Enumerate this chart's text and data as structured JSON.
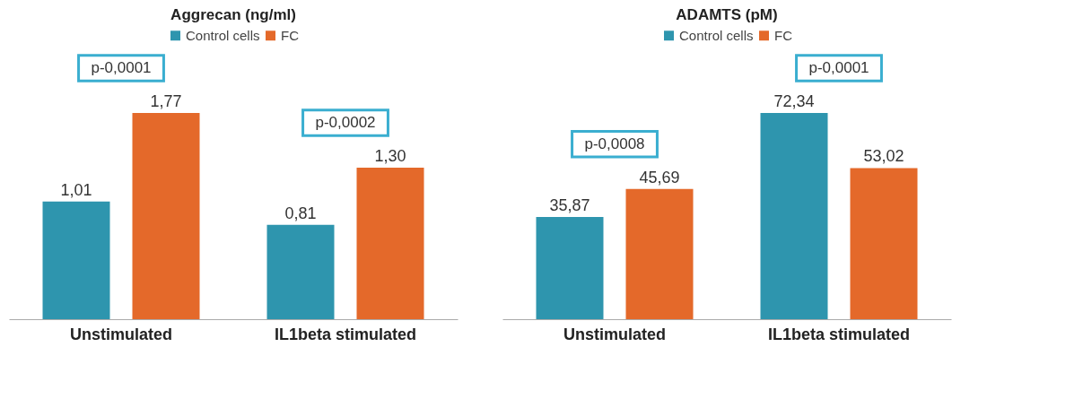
{
  "chart_data": [
    {
      "type": "bar",
      "title": "Aggrecan (ng/ml)",
      "categories": [
        "Unstimulated",
        "IL1beta stimulated"
      ],
      "series": [
        {
          "name": "Control cells",
          "color": "#2e95ae",
          "values": [
            1.01,
            0.81
          ],
          "value_labels": [
            "1,01",
            "0,81"
          ]
        },
        {
          "name": "FC",
          "color": "#e4692a",
          "values": [
            1.77,
            1.3
          ],
          "value_labels": [
            "1,77",
            "1,30"
          ]
        }
      ],
      "annotations": [
        "p-0,0001",
        "p-0,0002"
      ],
      "legend": "top",
      "tick_labels": "x"
    },
    {
      "type": "bar",
      "title": "ADAMTS (pM)",
      "categories": [
        "Unstimulated",
        "IL1beta stimulated"
      ],
      "series": [
        {
          "name": "Control cells",
          "color": "#2e95ae",
          "values": [
            35.87,
            72.34
          ],
          "value_labels": [
            "35,87",
            "72,34"
          ]
        },
        {
          "name": "FC",
          "color": "#e4692a",
          "values": [
            45.69,
            53.02
          ],
          "value_labels": [
            "45,69",
            "53,02"
          ]
        }
      ],
      "annotations": [
        "p-0,0008",
        "p-0,0001"
      ],
      "legend": "top",
      "tick_labels": "x"
    }
  ]
}
